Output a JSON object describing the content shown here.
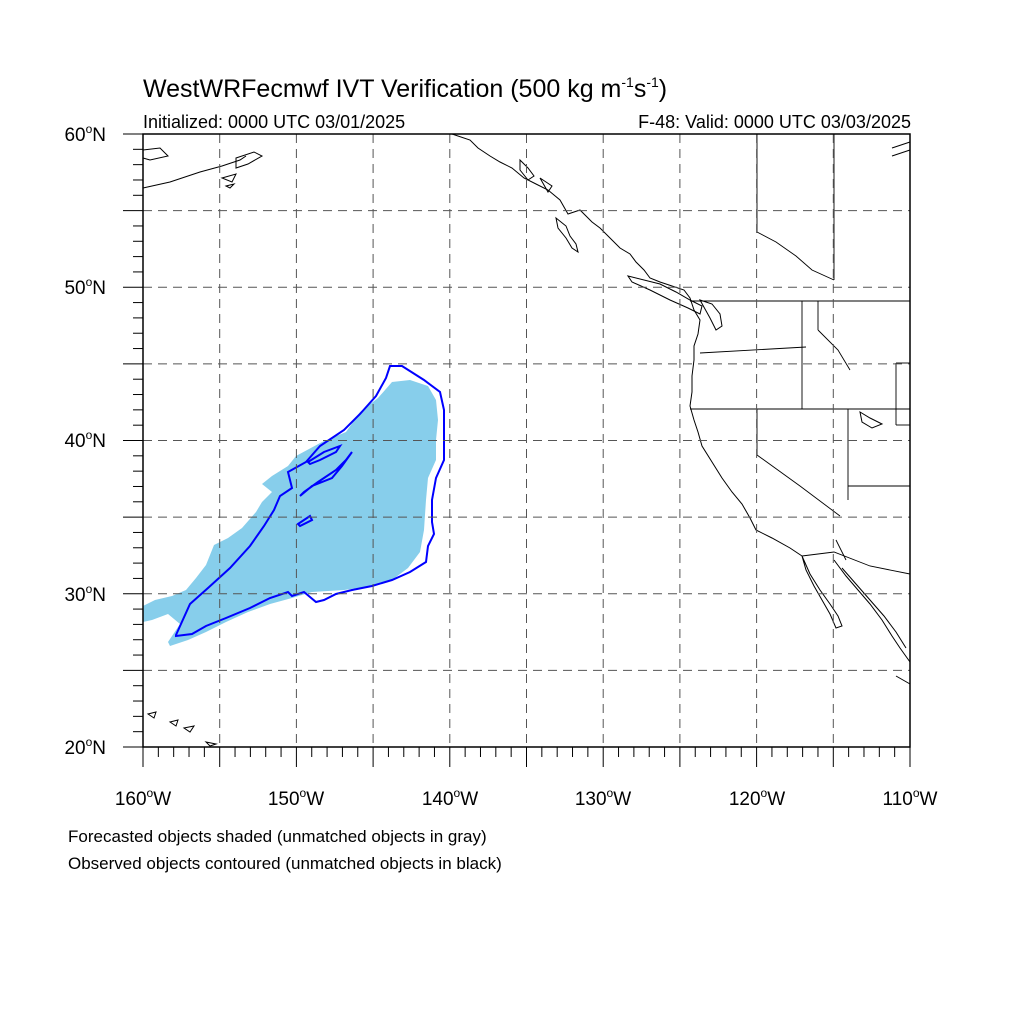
{
  "title": "WestWRFecmwf IVT Verification (500 kg m",
  "title_sup1": "-1",
  "title_mid": "s",
  "title_sup2": "-1",
  "title_end": ")",
  "initialized": "Initialized: 0000 UTC 03/01/2025",
  "valid": "F-48: Valid: 0000 UTC 03/03/2025",
  "lat_labels": [
    "60",
    "50",
    "40",
    "30",
    "20"
  ],
  "lat_suffix": "N",
  "lon_labels": [
    "160",
    "150",
    "140",
    "130",
    "120",
    "110"
  ],
  "lon_suffix": "W",
  "degree": "o",
  "extent": {
    "lon_min": -160,
    "lon_max": -110,
    "lat_min": 20,
    "lat_max": 60
  },
  "caption_forecast": "Forecasted objects shaded (unmatched objects in gray)",
  "caption_observed": "Observed objects contoured (unmatched objects in black)",
  "colors": {
    "forecast_fill": "#87ceeb",
    "observed_contour": "#0000ff",
    "coastline": "#000000",
    "grid": "#555555"
  }
}
